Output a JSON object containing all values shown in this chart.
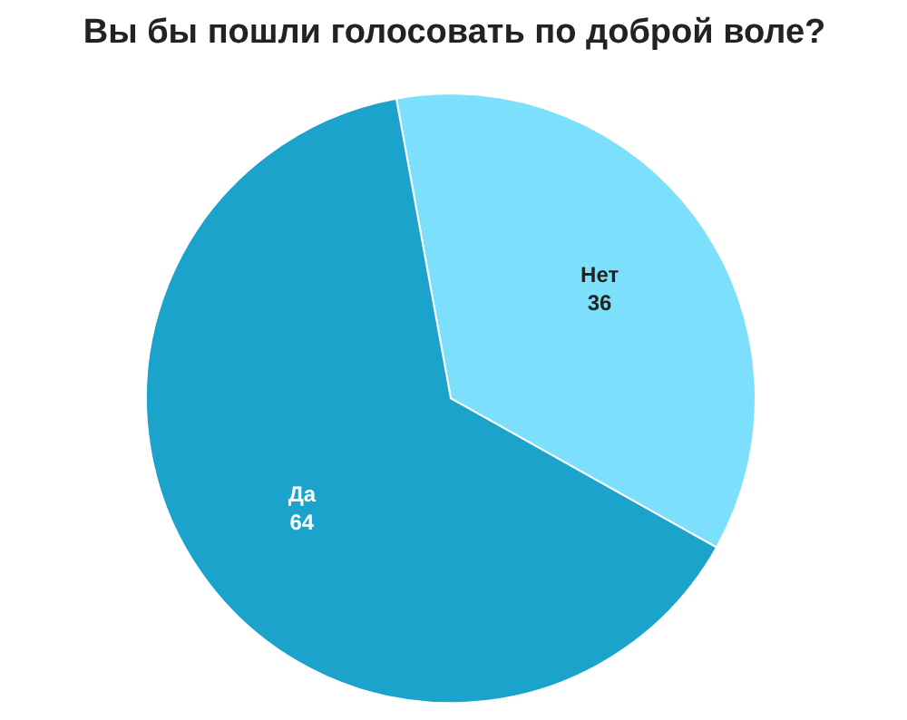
{
  "chart_data": {
    "type": "pie",
    "title": "Вы бы пошли голосовать по доброй воле?",
    "categories": [
      "Нет",
      "Да"
    ],
    "values": [
      36,
      64
    ],
    "colors": [
      "#7ce0fc",
      "#1ba3cc"
    ],
    "data_labels": true
  }
}
